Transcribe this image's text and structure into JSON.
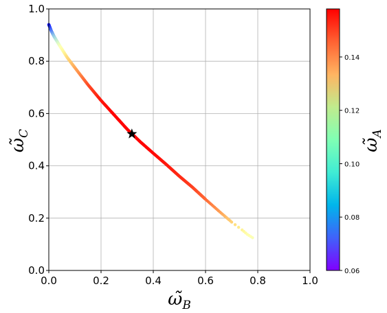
{
  "chart_data": {
    "type": "scatter",
    "title": "",
    "xlabel": {
      "main": "ω̃",
      "sub": "B"
    },
    "ylabel": {
      "main": "ω̃",
      "sub": "C"
    },
    "colorbar_label": {
      "main": "ω̃",
      "sub": "A"
    },
    "xlim": [
      0.0,
      1.0
    ],
    "ylim": [
      0.0,
      1.0
    ],
    "xticks": [
      "0.0",
      "0.2",
      "0.4",
      "0.6",
      "0.8",
      "1.0"
    ],
    "yticks": [
      "0.0",
      "0.2",
      "0.4",
      "0.6",
      "0.8",
      "1.0"
    ],
    "colorbar": {
      "colormap": "rainbow",
      "range": [
        0.06,
        0.158
      ],
      "ticks": [
        "0.06",
        "0.08",
        "0.10",
        "0.12",
        "0.14"
      ]
    },
    "grid": true,
    "curve": {
      "description_points": [
        {
          "x": 0.0,
          "y": 0.94,
          "c": 0.06
        },
        {
          "x": 0.01,
          "y": 0.915,
          "c": 0.075
        },
        {
          "x": 0.02,
          "y": 0.895,
          "c": 0.088
        },
        {
          "x": 0.04,
          "y": 0.862,
          "c": 0.105
        },
        {
          "x": 0.07,
          "y": 0.815,
          "c": 0.125
        },
        {
          "x": 0.1,
          "y": 0.775,
          "c": 0.135
        },
        {
          "x": 0.15,
          "y": 0.71,
          "c": 0.148
        },
        {
          "x": 0.2,
          "y": 0.65,
          "c": 0.155
        },
        {
          "x": 0.25,
          "y": 0.595,
          "c": 0.158
        },
        {
          "x": 0.3,
          "y": 0.54,
          "c": 0.158
        },
        {
          "x": 0.35,
          "y": 0.492,
          "c": 0.158
        },
        {
          "x": 0.4,
          "y": 0.448,
          "c": 0.157
        },
        {
          "x": 0.45,
          "y": 0.405,
          "c": 0.155
        },
        {
          "x": 0.5,
          "y": 0.36,
          "c": 0.153
        },
        {
          "x": 0.55,
          "y": 0.318,
          "c": 0.15
        },
        {
          "x": 0.6,
          "y": 0.272,
          "c": 0.145
        },
        {
          "x": 0.65,
          "y": 0.228,
          "c": 0.138
        },
        {
          "x": 0.7,
          "y": 0.185,
          "c": 0.128
        },
        {
          "x": 0.74,
          "y": 0.155,
          "c": 0.118
        },
        {
          "x": 0.76,
          "y": 0.138,
          "c": 0.112
        },
        {
          "x": 0.78,
          "y": 0.125,
          "c": 0.108
        }
      ]
    },
    "marker": {
      "symbol": "star",
      "x": 0.318,
      "y": 0.522,
      "color": "#000000"
    }
  }
}
